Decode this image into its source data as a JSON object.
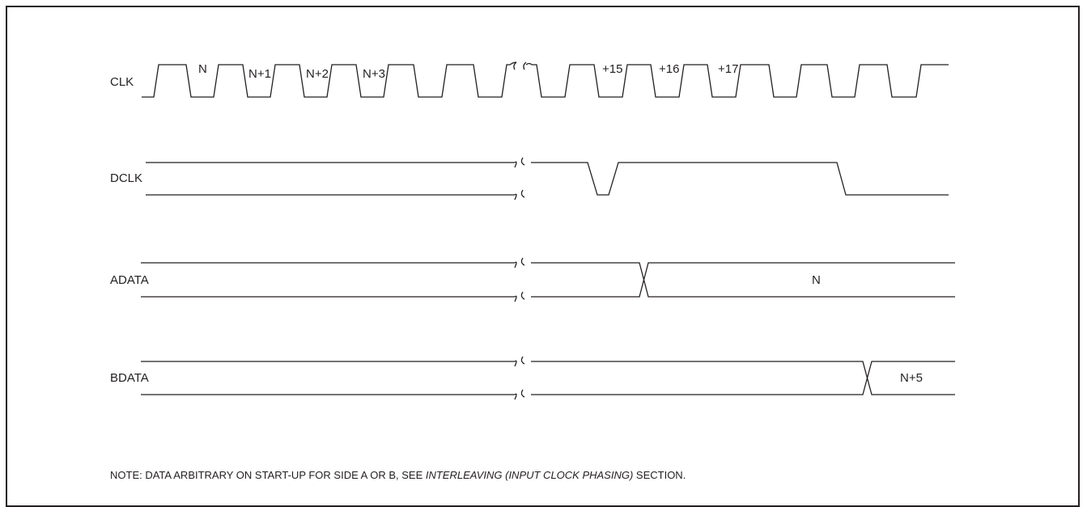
{
  "signals": [
    {
      "id": "clk",
      "name": "CLK"
    },
    {
      "id": "dclk",
      "name": "DCLK"
    },
    {
      "id": "adata",
      "name": "ADATA"
    },
    {
      "id": "bdata",
      "name": "BDATA"
    }
  ],
  "clk_labels": [
    "N",
    "N+1",
    "N+2",
    "N+3",
    "+15",
    "+16",
    "+17"
  ],
  "adata_value": "N",
  "bdata_value": "N+5",
  "note": {
    "prefix": "NOTE:  DATA ARBITRARY ON START-UP FOR SIDE A OR B, SEE ",
    "italic": "INTERLEAVING (INPUT CLOCK PHASING)",
    "suffix": " SECTION."
  }
}
